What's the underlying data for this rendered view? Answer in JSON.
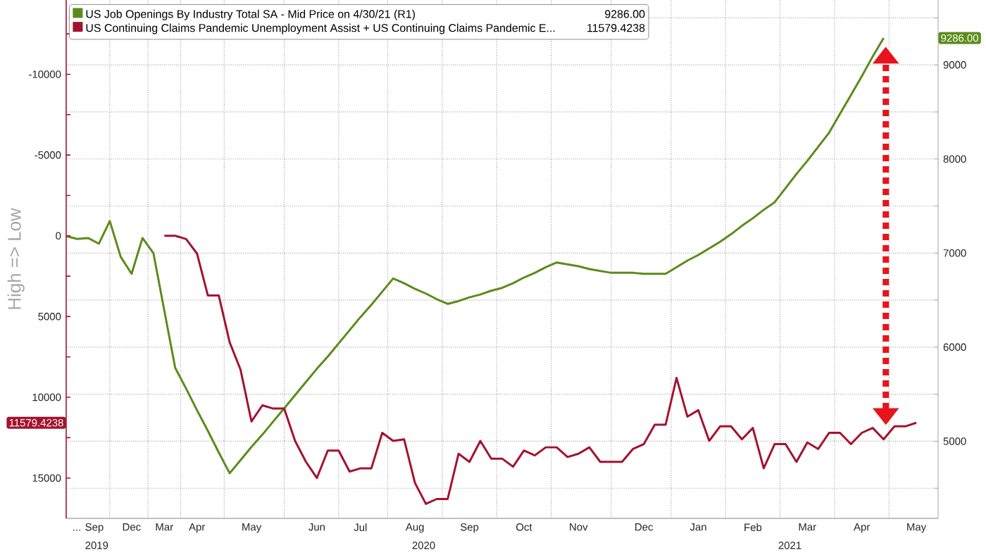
{
  "chart_data": {
    "type": "line",
    "ylabel": "High => Low",
    "legend": "top",
    "grid": true,
    "marker": "none",
    "line_style": "solid",
    "categories": [
      null,
      null,
      "... Sep",
      null,
      null,
      null,
      "Dec",
      null,
      null,
      "Mar",
      null,
      null,
      "Apr",
      null,
      null,
      null,
      null,
      "May",
      null,
      null,
      null,
      null,
      null,
      "Jun",
      null,
      null,
      null,
      "Jul",
      null,
      null,
      null,
      null,
      "Aug",
      null,
      null,
      null,
      null,
      "Sep",
      null,
      null,
      null,
      null,
      "Oct",
      null,
      null,
      null,
      null,
      "Nov",
      null,
      null,
      null,
      null,
      null,
      "Dec",
      null,
      null,
      null,
      null,
      "Jan",
      null,
      null,
      null,
      null,
      "Feb",
      null,
      null,
      null,
      null,
      "Mar",
      null,
      null,
      null,
      null,
      "Apr",
      null,
      null,
      null,
      null,
      "May"
    ],
    "ylim": [
      17500,
      -14600
    ],
    "yticks": [
      {
        "value": -12500,
        "label": null
      },
      -10000,
      {
        "value": -7500,
        "label": null
      },
      -5000,
      {
        "value": -2500,
        "label": null
      },
      0,
      {
        "value": 2500,
        "label": null
      },
      5000,
      {
        "value": 7500,
        "label": null
      },
      10000,
      {
        "value": 12500,
        "label": null
      },
      15000
    ],
    "y2lim": [
      4180,
      9690
    ],
    "y2ticks": [
      {
        "value": 4500,
        "label": null
      },
      5000,
      {
        "value": 5500,
        "label": null
      },
      6000,
      {
        "value": 6500,
        "label": null
      },
      7000,
      {
        "value": 7500,
        "label": null
      },
      8000,
      {
        "value": 8500,
        "label": null
      },
      9000,
      {
        "value": 9500,
        "label": null
      }
    ],
    "series": [
      {
        "name": "US Job Openings By Industry Total SA - Mid Price on 4/30/21 (R1)",
        "color": "#5b8c1a",
        "axis": "y2",
        "values": [
          7180,
          7150,
          7160,
          7100,
          7340,
          6960,
          6780,
          7160,
          7000,
          6390,
          5780,
          5560,
          5330,
          5110,
          4880,
          4660,
          4800,
          4940,
          5070,
          5210,
          5350,
          5490,
          5630,
          5770,
          5900,
          6040,
          6180,
          6320,
          6450,
          6590,
          6730,
          6680,
          6620,
          6570,
          6510,
          6460,
          6490,
          6530,
          6560,
          6600,
          6630,
          6680,
          6740,
          6790,
          6850,
          6900,
          6880,
          6860,
          6830,
          6810,
          6790,
          6790,
          6790,
          6780,
          6780,
          6780,
          6850,
          6920,
          6980,
          7050,
          7120,
          7200,
          7290,
          7370,
          7460,
          7540,
          7690,
          7840,
          7980,
          8130,
          8280,
          8480,
          8680,
          8880,
          9090,
          9286,
          null,
          null,
          null
        ]
      },
      {
        "name": "US Continuing Claims Pandemic Unemployment Assist + US Continuing Claims Pandemic E...",
        "color": "#a3132f",
        "axis": "y",
        "values": [
          null,
          null,
          null,
          null,
          null,
          null,
          null,
          null,
          null,
          0,
          0,
          200,
          1100,
          3700,
          3700,
          6600,
          8300,
          11500,
          10500,
          10700,
          10700,
          12700,
          14000,
          15000,
          13300,
          13300,
          14600,
          14400,
          14400,
          12200,
          12700,
          12600,
          15300,
          16600,
          16300,
          16300,
          13500,
          14000,
          12700,
          13800,
          13800,
          14300,
          13300,
          13600,
          13100,
          13100,
          13700,
          13500,
          13100,
          14000,
          14000,
          14000,
          13200,
          12900,
          11700,
          11700,
          8800,
          11200,
          10800,
          12700,
          11800,
          11800,
          12600,
          11900,
          14400,
          12900,
          12900,
          14000,
          12800,
          13200,
          12200,
          12200,
          12900,
          12200,
          11900,
          12600,
          11800,
          11800,
          11579.4238
        ]
      }
    ],
    "annotations": [
      "9286.00",
      "11579.4238",
      "9286.00",
      "11579.4238",
      "2019",
      "2020",
      "2021"
    ]
  }
}
